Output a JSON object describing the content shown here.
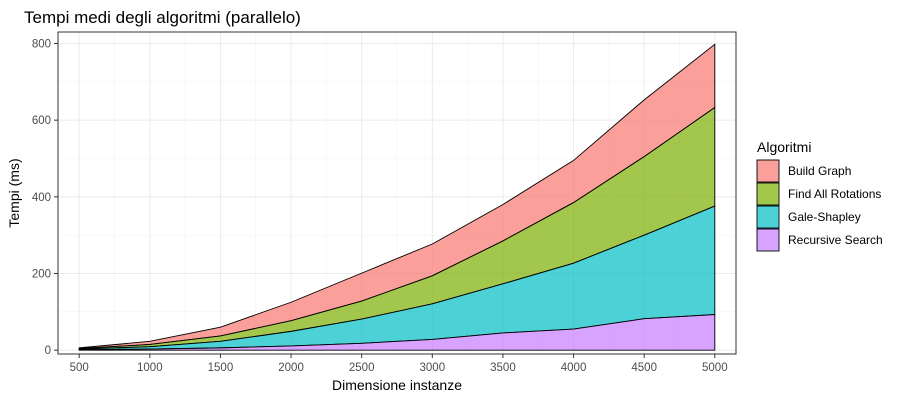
{
  "chart_data": {
    "type": "area",
    "stacked": true,
    "title": "Tempi medi degli algoritmi (parallelo)",
    "xlabel": "Dimensione instanze",
    "ylabel": "Tempi (ms)",
    "x": [
      500,
      1000,
      1500,
      2000,
      2500,
      3000,
      3500,
      4000,
      4500,
      5000
    ],
    "xticks": [
      500,
      1000,
      1500,
      2000,
      2500,
      3000,
      3500,
      4000,
      4500,
      5000
    ],
    "yticks": [
      0,
      200,
      400,
      600,
      800
    ],
    "xlim": [
      350,
      5150
    ],
    "ylim": [
      -10,
      830
    ],
    "grid": true,
    "legend": {
      "title": "Algoritmi",
      "placement": "right"
    },
    "series": [
      {
        "name": "Build Graph",
        "color": "#F8766D",
        "values": [
          2,
          8,
          23,
          48,
          73,
          83,
          95,
          110,
          148,
          165
        ]
      },
      {
        "name": "Find All Rotations",
        "color": "#7CAE00",
        "values": [
          1,
          6,
          14,
          28,
          47,
          73,
          112,
          158,
          205,
          257
        ]
      },
      {
        "name": "Gale-Shapley",
        "color": "#00BFC4",
        "values": [
          2,
          6,
          17,
          38,
          63,
          93,
          128,
          172,
          218,
          283
        ]
      },
      {
        "name": "Recursive Search",
        "color": "#C77CFF",
        "values": [
          1,
          3,
          6,
          11,
          18,
          28,
          45,
          55,
          82,
          93
        ]
      }
    ]
  }
}
